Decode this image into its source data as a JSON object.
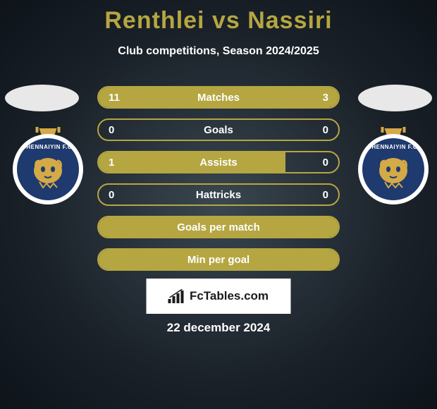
{
  "title": "Renthlei vs Nassiri",
  "subtitle": "Club competitions, Season 2024/2025",
  "colors": {
    "accent": "#b5a642",
    "text_white": "#ffffff",
    "club_blue": "#1e3a6e",
    "club_gold": "#d4a947",
    "brand_bg": "#ffffff"
  },
  "club": {
    "name": "CHENNAIYIN F.C."
  },
  "stats": [
    {
      "label": "Matches",
      "left_value": "11",
      "right_value": "3",
      "left_fill_pct": 78,
      "right_fill_pct": 22
    },
    {
      "label": "Goals",
      "left_value": "0",
      "right_value": "0",
      "left_fill_pct": 0,
      "right_fill_pct": 0
    },
    {
      "label": "Assists",
      "left_value": "1",
      "right_value": "0",
      "left_fill_pct": 78,
      "right_fill_pct": 0
    },
    {
      "label": "Hattricks",
      "left_value": "0",
      "right_value": "0",
      "left_fill_pct": 0,
      "right_fill_pct": 0
    },
    {
      "label": "Goals per match",
      "left_value": "",
      "right_value": "",
      "full_fill": true
    },
    {
      "label": "Min per goal",
      "left_value": "",
      "right_value": "",
      "full_fill": true
    }
  ],
  "brand": {
    "text": "FcTables.com"
  },
  "date": "22 december 2024"
}
